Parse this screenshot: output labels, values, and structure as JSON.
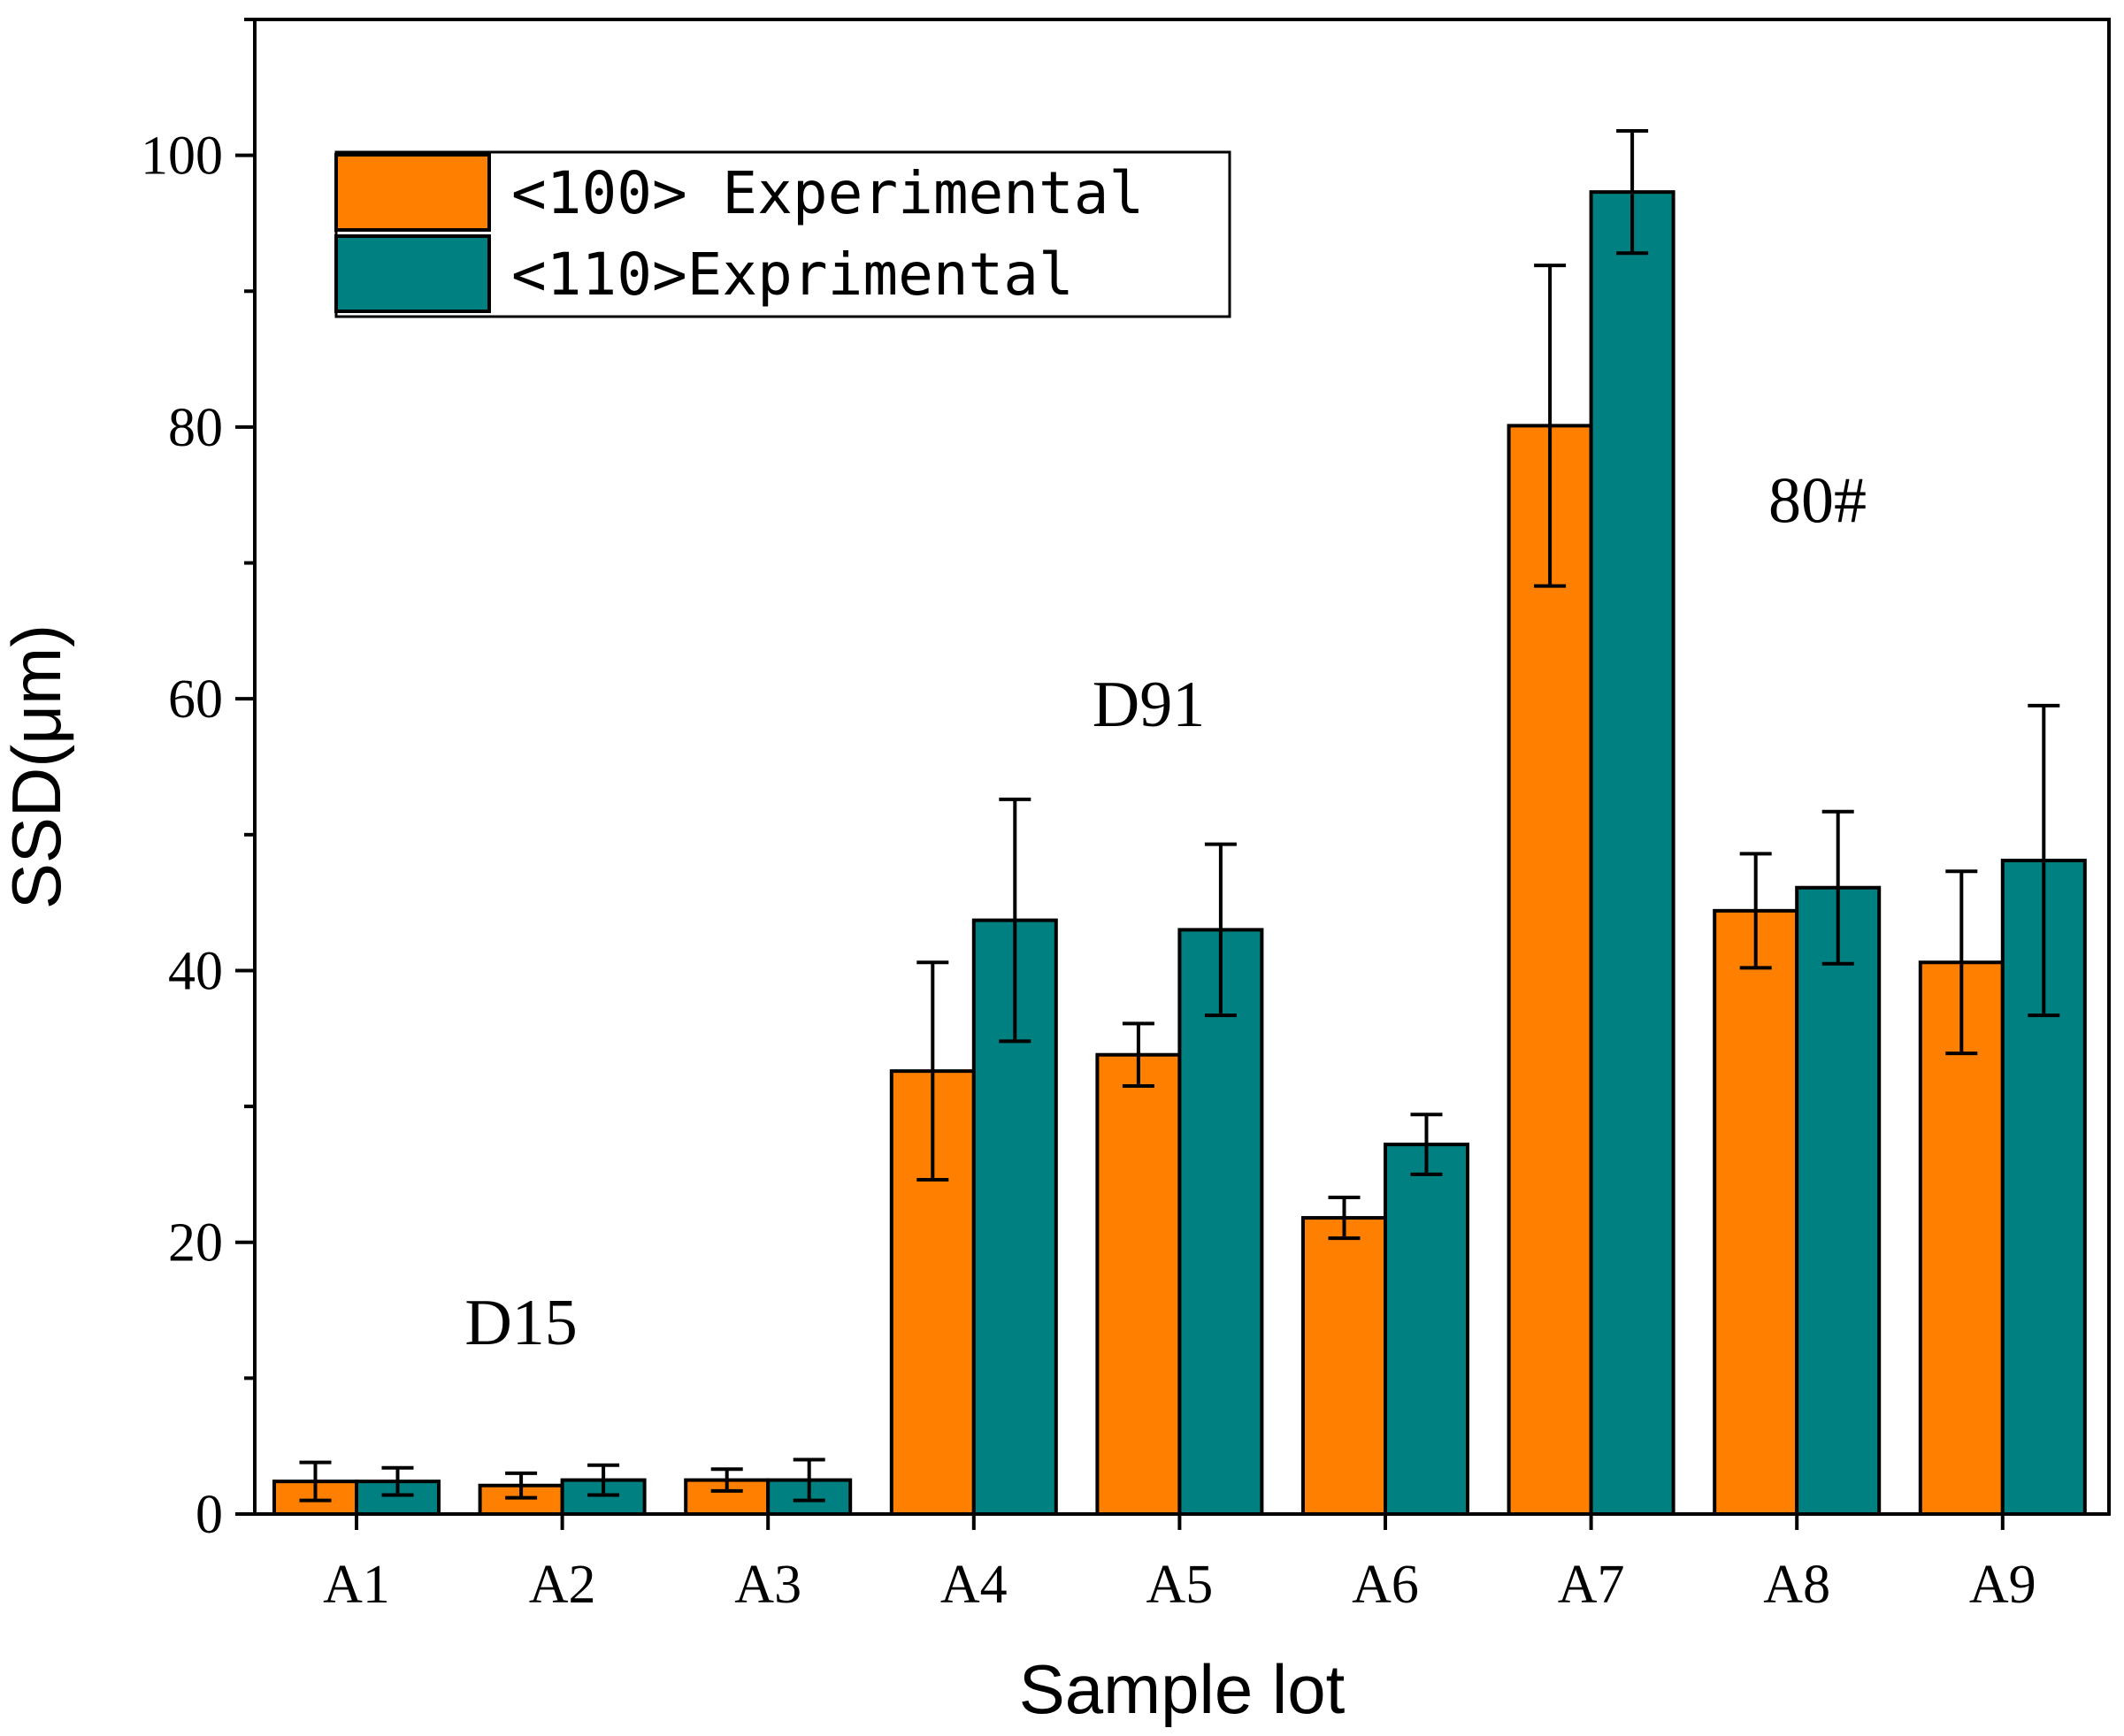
{
  "chart_data": {
    "type": "bar",
    "title": "",
    "xlabel": "Sample lot",
    "ylabel": "SSD(μm)",
    "ylim": [
      0,
      110
    ],
    "yticks": [
      0,
      20,
      40,
      60,
      80,
      100
    ],
    "yminor_step": 10,
    "grid": false,
    "legend_position": "top-left",
    "categories": [
      "A1",
      "A2",
      "A3",
      "A4",
      "A5",
      "A6",
      "A7",
      "A8",
      "A9"
    ],
    "series": [
      {
        "name": "<100> Experimental",
        "color": "#FF7F00",
        "values": [
          2.4,
          2.1,
          2.5,
          32.6,
          33.8,
          21.8,
          80.1,
          44.4,
          40.6
        ],
        "errors": [
          1.4,
          0.9,
          0.8,
          8.0,
          2.3,
          1.5,
          11.8,
          4.2,
          6.7
        ]
      },
      {
        "name": "<110>Exprimental",
        "color": "#008080",
        "values": [
          2.4,
          2.5,
          2.5,
          43.7,
          43.0,
          27.2,
          97.3,
          46.1,
          48.1
        ],
        "errors": [
          1.0,
          1.1,
          1.5,
          8.9,
          6.3,
          2.2,
          4.5,
          5.6,
          11.4
        ]
      }
    ],
    "annotations": [
      {
        "text": "D15",
        "x_category": "A2",
        "x_offset": -0.2,
        "y": 12.5
      },
      {
        "text": "D91",
        "x_category": "A5",
        "x_offset": -0.15,
        "y": 58.0
      },
      {
        "text": "80#",
        "x_category": "A8",
        "x_offset": 0.1,
        "y": 73.0
      }
    ]
  }
}
